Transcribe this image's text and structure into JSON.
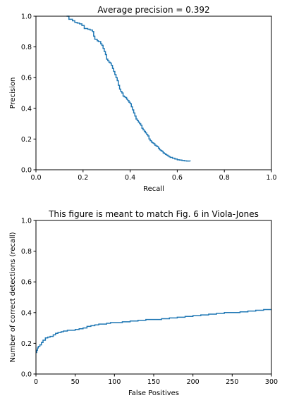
{
  "colors": {
    "series": "#1f77b4",
    "axis": "#000000",
    "background": "#ffffff"
  },
  "chart_data": [
    {
      "type": "line",
      "title": "Average precision = 0.392",
      "xlabel": "Recall",
      "ylabel": "Precision",
      "xlim": [
        0,
        1
      ],
      "ylim": [
        0,
        1
      ],
      "xticks": [
        "0.0",
        "0.2",
        "0.4",
        "0.6",
        "0.8",
        "1.0"
      ],
      "yticks": [
        "0.0",
        "0.2",
        "0.4",
        "0.6",
        "0.8",
        "1.0"
      ],
      "grid": false,
      "line_style": "step",
      "series": [
        {
          "x": [
            0.13,
            0.14,
            0.155,
            0.165,
            0.175,
            0.185,
            0.195,
            0.205,
            0.22,
            0.23,
            0.24,
            0.245,
            0.25,
            0.26,
            0.265,
            0.275,
            0.28,
            0.285,
            0.29,
            0.295,
            0.3,
            0.305,
            0.31,
            0.315,
            0.32,
            0.325,
            0.33,
            0.335,
            0.34,
            0.345,
            0.35,
            0.355,
            0.36,
            0.365,
            0.37,
            0.375,
            0.38,
            0.385,
            0.39,
            0.395,
            0.4,
            0.405,
            0.41,
            0.415,
            0.42,
            0.425,
            0.43,
            0.435,
            0.44,
            0.445,
            0.45,
            0.455,
            0.46,
            0.465,
            0.47,
            0.475,
            0.48,
            0.485,
            0.49,
            0.495,
            0.5,
            0.505,
            0.51,
            0.515,
            0.52,
            0.525,
            0.53,
            0.535,
            0.54,
            0.545,
            0.55,
            0.555,
            0.56,
            0.565,
            0.57,
            0.58,
            0.59,
            0.6,
            0.61,
            0.62,
            0.63,
            0.64,
            0.655
          ],
          "y": [
            1.0,
            0.98,
            0.97,
            0.96,
            0.955,
            0.95,
            0.94,
            0.92,
            0.915,
            0.91,
            0.9,
            0.87,
            0.85,
            0.84,
            0.835,
            0.82,
            0.81,
            0.79,
            0.77,
            0.75,
            0.72,
            0.71,
            0.7,
            0.695,
            0.68,
            0.66,
            0.64,
            0.62,
            0.6,
            0.58,
            0.55,
            0.525,
            0.51,
            0.5,
            0.48,
            0.475,
            0.47,
            0.46,
            0.45,
            0.44,
            0.43,
            0.41,
            0.39,
            0.37,
            0.35,
            0.33,
            0.32,
            0.31,
            0.3,
            0.29,
            0.27,
            0.26,
            0.25,
            0.24,
            0.23,
            0.22,
            0.2,
            0.19,
            0.18,
            0.175,
            0.17,
            0.16,
            0.155,
            0.15,
            0.14,
            0.13,
            0.125,
            0.12,
            0.11,
            0.105,
            0.1,
            0.095,
            0.09,
            0.085,
            0.08,
            0.075,
            0.07,
            0.065,
            0.063,
            0.06,
            0.058,
            0.057,
            0.055
          ]
        }
      ]
    },
    {
      "type": "line",
      "title": "This figure is meant to match Fig. 6 in Viola-Jones",
      "xlabel": "False Positives",
      "ylabel": "Number of correct detections (recall)",
      "xlim": [
        0,
        300
      ],
      "ylim": [
        0,
        1
      ],
      "xticks": [
        "0",
        "50",
        "100",
        "150",
        "200",
        "250",
        "300"
      ],
      "yticks": [
        "0.0",
        "0.2",
        "0.4",
        "0.6",
        "0.8",
        "1.0"
      ],
      "grid": false,
      "line_style": "step",
      "series": [
        {
          "x": [
            0,
            1,
            2,
            3,
            5,
            7,
            9,
            12,
            15,
            18,
            22,
            25,
            28,
            32,
            35,
            40,
            45,
            50,
            55,
            60,
            65,
            70,
            75,
            80,
            85,
            90,
            95,
            100,
            110,
            120,
            130,
            140,
            150,
            160,
            170,
            180,
            190,
            200,
            210,
            220,
            230,
            240,
            250,
            260,
            270,
            280,
            290,
            300
          ],
          "y": [
            0.14,
            0.155,
            0.17,
            0.18,
            0.19,
            0.205,
            0.22,
            0.235,
            0.24,
            0.245,
            0.255,
            0.265,
            0.27,
            0.275,
            0.28,
            0.285,
            0.285,
            0.29,
            0.295,
            0.3,
            0.31,
            0.315,
            0.32,
            0.325,
            0.325,
            0.33,
            0.335,
            0.335,
            0.34,
            0.345,
            0.35,
            0.355,
            0.355,
            0.36,
            0.365,
            0.37,
            0.375,
            0.38,
            0.385,
            0.39,
            0.395,
            0.4,
            0.4,
            0.405,
            0.41,
            0.415,
            0.42,
            0.42
          ]
        }
      ]
    }
  ]
}
